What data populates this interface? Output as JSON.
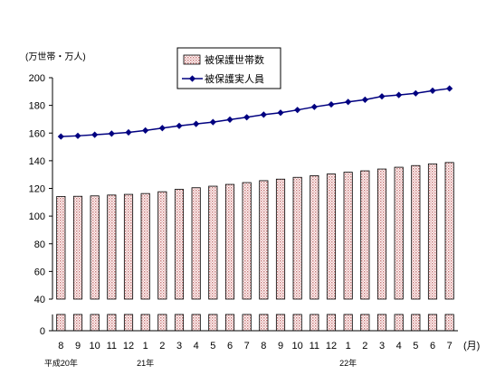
{
  "chart_data": {
    "type": "bar",
    "y_unit_label": "(万世帯・万人)",
    "x_unit_label": "(月)",
    "ylim": [
      0,
      200
    ],
    "y_ticks": [
      0,
      40,
      60,
      80,
      100,
      120,
      140,
      160,
      180,
      200
    ],
    "y_axis_break": [
      0,
      40
    ],
    "grid": false,
    "legend_position": "top-center",
    "categories": [
      "8",
      "9",
      "10",
      "11",
      "12",
      "1",
      "2",
      "3",
      "4",
      "5",
      "6",
      "7",
      "8",
      "9",
      "10",
      "11",
      "12",
      "1",
      "2",
      "3",
      "4",
      "5",
      "6",
      "7"
    ],
    "era_labels": [
      {
        "index": 0,
        "text": "平成20年"
      },
      {
        "index": 5,
        "text": "21年"
      },
      {
        "index": 17,
        "text": "22年"
      }
    ],
    "series": [
      {
        "name": "被保護世帯数",
        "type": "bar",
        "color": "#d9a0a0",
        "values": [
          114.2,
          114.3,
          114.6,
          115.2,
          115.7,
          116.3,
          117.6,
          119.3,
          120.5,
          121.6,
          122.9,
          124.2,
          125.6,
          126.7,
          128.0,
          129.2,
          130.4,
          131.7,
          132.7,
          134.0,
          135.3,
          136.5,
          137.7,
          138.7
        ]
      },
      {
        "name": "被保護実人員",
        "type": "line",
        "color": "#000080",
        "values": [
          157.5,
          158.0,
          158.8,
          159.6,
          160.5,
          161.9,
          163.6,
          165.2,
          166.6,
          167.9,
          169.7,
          171.4,
          173.3,
          174.7,
          176.7,
          178.9,
          180.7,
          182.5,
          184.1,
          186.5,
          187.5,
          188.7,
          190.6,
          192.2
        ]
      }
    ]
  }
}
